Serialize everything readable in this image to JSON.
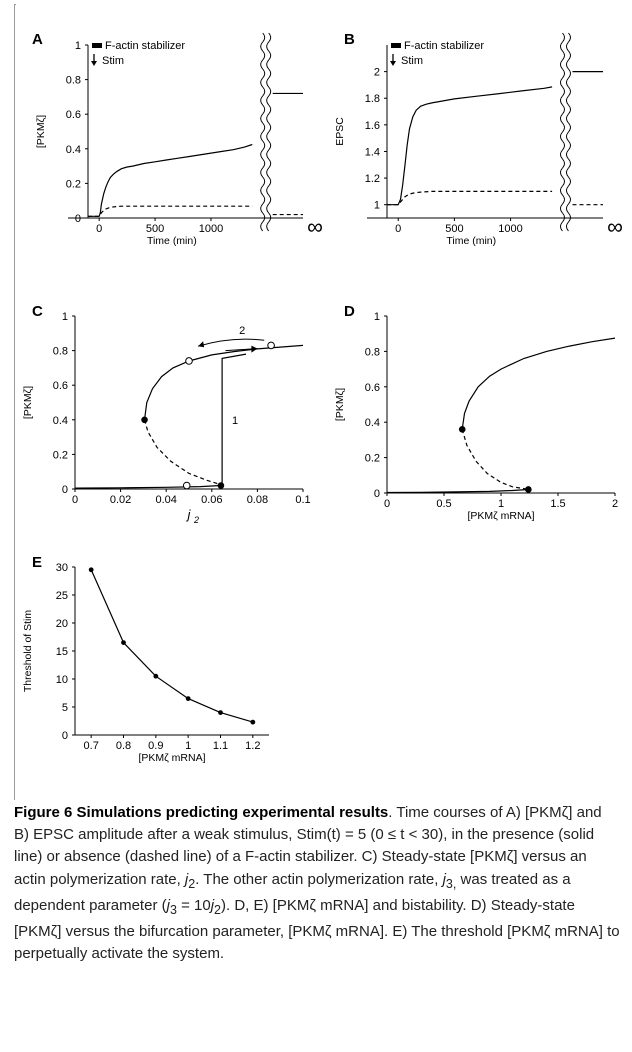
{
  "figure": {
    "number_label": "Figure 6",
    "title": "Simulations predicting experimental results",
    "caption_parts": [
      ". Time courses of A) [PKMζ] and B) EPSC amplitude after a weak stimulus, Stim(t) = 5 (0 ≤ t < 30), in the presence (solid line) or absence (dashed line) of a F-actin stabilizer. C) Steady-state [PKMζ] versus an actin polymerization rate, ",
      "j",
      "2",
      ". The other actin polymerization rate, ",
      "j",
      "3,",
      " was treated as a dependent parameter (",
      "j",
      "3",
      " = 10",
      "j",
      "2",
      "). D, E) [PKMζ mRNA] and bistability. D) Steady-state [PKMζ] versus the bifurcation parameter, [PKMζ mRNA]. E) The threshold [PKMζ mRNA] to perpetually activate the system."
    ]
  },
  "chart_data": [
    {
      "panel": "A",
      "type": "line",
      "xlabel": "Time (min)",
      "ylabel": "[PKMζ]",
      "xlim": [
        -100,
        1400
      ],
      "ylim": [
        0,
        1
      ],
      "xticks": [
        "0",
        "500",
        "1000"
      ],
      "yticks": [
        "0",
        "0.2",
        "0.4",
        "0.6",
        "0.8",
        "1"
      ],
      "break_label": "∞",
      "legend": [
        "F-actin stabilizer",
        "Stim"
      ],
      "series": [
        {
          "style": "solid",
          "x": [
            -100,
            0,
            10,
            20,
            40,
            60,
            80,
            100,
            130,
            160,
            200,
            250,
            300,
            400,
            500,
            600,
            700,
            800,
            900,
            1000,
            1100,
            1200,
            1300,
            1370
          ],
          "y": [
            0.01,
            0.01,
            0.03,
            0.08,
            0.14,
            0.18,
            0.21,
            0.235,
            0.255,
            0.27,
            0.285,
            0.295,
            0.3,
            0.315,
            0.325,
            0.335,
            0.345,
            0.355,
            0.365,
            0.375,
            0.385,
            0.395,
            0.41,
            0.425
          ],
          "y_infinity": 0.72
        },
        {
          "style": "dashed",
          "x": [
            -100,
            0,
            20,
            50,
            100,
            150,
            200,
            300,
            500,
            800,
            1100,
            1370
          ],
          "y": [
            0.01,
            0.01,
            0.03,
            0.05,
            0.062,
            0.066,
            0.068,
            0.068,
            0.068,
            0.068,
            0.068,
            0.068
          ],
          "y_infinity": 0.02
        }
      ]
    },
    {
      "panel": "B",
      "type": "line",
      "xlabel": "Time (min)",
      "ylabel": "EPSC",
      "xlim": [
        -100,
        1400
      ],
      "ylim": [
        0.9,
        2.2
      ],
      "xticks": [
        "0",
        "500",
        "1000"
      ],
      "yticks": [
        "1",
        "1.2",
        "1.4",
        "1.6",
        "1.8",
        "2"
      ],
      "break_label": "∞",
      "legend": [
        "F-actin stabilizer",
        "Stim"
      ],
      "series": [
        {
          "style": "solid",
          "x": [
            -100,
            0,
            20,
            40,
            60,
            80,
            100,
            130,
            160,
            200,
            250,
            300,
            400,
            500,
            700,
            900,
            1100,
            1300,
            1370
          ],
          "y": [
            1.0,
            1.0,
            1.04,
            1.15,
            1.3,
            1.45,
            1.57,
            1.66,
            1.71,
            1.74,
            1.755,
            1.765,
            1.78,
            1.795,
            1.815,
            1.835,
            1.855,
            1.875,
            1.885
          ],
          "y_infinity": 2.0
        },
        {
          "style": "dashed",
          "x": [
            -100,
            0,
            30,
            60,
            100,
            150,
            200,
            300,
            500,
            800,
            1100,
            1370
          ],
          "y": [
            1.0,
            1.0,
            1.03,
            1.06,
            1.08,
            1.09,
            1.095,
            1.1,
            1.1,
            1.1,
            1.1,
            1.1
          ],
          "y_infinity": 1.0
        }
      ]
    },
    {
      "panel": "C",
      "type": "line",
      "xlabel": "j",
      "xlabel_sub": "2",
      "ylabel": "[PKMζ]",
      "xlim": [
        0,
        0.1
      ],
      "ylim": [
        0,
        1
      ],
      "xticks": [
        "0",
        "0.02",
        "0.04",
        "0.06",
        "0.08",
        "0.1"
      ],
      "yticks": [
        "0",
        "0.2",
        "0.4",
        "0.6",
        "0.8",
        "1"
      ],
      "annotations": [
        "1",
        "2"
      ],
      "series": [
        {
          "style": "solid",
          "x": [
            0.0305,
            0.0315,
            0.034,
            0.038,
            0.043,
            0.05,
            0.06,
            0.07,
            0.08,
            0.09,
            0.1
          ],
          "y": [
            0.4,
            0.5,
            0.58,
            0.65,
            0.7,
            0.74,
            0.775,
            0.795,
            0.81,
            0.82,
            0.83
          ]
        },
        {
          "style": "dashed",
          "x": [
            0.0305,
            0.032,
            0.036,
            0.042,
            0.05,
            0.058,
            0.064
          ],
          "y": [
            0.4,
            0.33,
            0.24,
            0.16,
            0.09,
            0.05,
            0.025
          ]
        },
        {
          "style": "solid",
          "x": [
            0,
            0.02,
            0.04,
            0.055,
            0.064
          ],
          "y": [
            0.005,
            0.007,
            0.01,
            0.014,
            0.02
          ]
        },
        {
          "style": "solid",
          "x": [
            0.0645,
            0.0645,
            0.075
          ],
          "y": [
            0.02,
            0.755,
            0.78
          ]
        },
        {
          "style": "bifurcation_points",
          "x": [
            0.0305,
            0.064
          ],
          "y": [
            0.4,
            0.02
          ]
        },
        {
          "style": "open_points",
          "x": [
            0.05,
            0.086,
            0.049
          ],
          "y": [
            0.74,
            0.83,
            0.02
          ]
        }
      ]
    },
    {
      "panel": "D",
      "type": "line",
      "xlabel": "[PKMζ mRNA]",
      "ylabel": "[PKMζ]",
      "xlim": [
        0,
        2
      ],
      "ylim": [
        0,
        1
      ],
      "xticks": [
        "0",
        "0.5",
        "1",
        "1.5",
        "2"
      ],
      "yticks": [
        "0",
        "0.2",
        "0.4",
        "0.6",
        "0.8",
        "1"
      ],
      "series": [
        {
          "style": "solid",
          "x": [
            0.66,
            0.68,
            0.72,
            0.8,
            0.9,
            1.0,
            1.2,
            1.4,
            1.6,
            1.8,
            2.0
          ],
          "y": [
            0.36,
            0.45,
            0.52,
            0.6,
            0.66,
            0.7,
            0.76,
            0.8,
            0.83,
            0.855,
            0.875
          ]
        },
        {
          "style": "dashed",
          "x": [
            0.66,
            0.7,
            0.78,
            0.88,
            1.0,
            1.1,
            1.2,
            1.24
          ],
          "y": [
            0.36,
            0.27,
            0.18,
            0.11,
            0.06,
            0.035,
            0.025,
            0.02
          ]
        },
        {
          "style": "solid",
          "x": [
            0,
            0.3,
            0.6,
            0.9,
            1.1,
            1.24
          ],
          "y": [
            0.003,
            0.004,
            0.006,
            0.009,
            0.014,
            0.02
          ]
        },
        {
          "style": "bifurcation_points",
          "x": [
            0.66,
            1.24
          ],
          "y": [
            0.36,
            0.02
          ]
        }
      ]
    },
    {
      "panel": "E",
      "type": "line",
      "xlabel": "[PKMζ mRNA]",
      "ylabel": "Threshold of Stim",
      "xlim": [
        0.65,
        1.25
      ],
      "ylim": [
        0,
        30
      ],
      "xticks": [
        "0.7",
        "0.8",
        "0.9",
        "1",
        "1.1",
        "1.2"
      ],
      "yticks": [
        "0",
        "5",
        "10",
        "15",
        "20",
        "25",
        "30"
      ],
      "series": [
        {
          "style": "markers_line",
          "x": [
            0.7,
            0.8,
            0.9,
            1.0,
            1.1,
            1.2
          ],
          "y": [
            29.5,
            16.5,
            10.5,
            6.5,
            4.0,
            2.3
          ]
        }
      ]
    }
  ]
}
